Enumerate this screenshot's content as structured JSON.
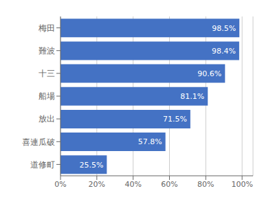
{
  "chart_data": {
    "type": "bar",
    "orientation": "horizontal",
    "categories": [
      "梅田",
      "難波",
      "十三",
      "船場",
      "放出",
      "喜連瓜破",
      "道修町"
    ],
    "values": [
      98.5,
      98.4,
      90.6,
      81.1,
      71.5,
      57.8,
      25.5
    ],
    "value_labels": [
      "98.5%",
      "98.4%",
      "90.6%",
      "81.1%",
      "71.5%",
      "57.8%",
      "25.5%"
    ],
    "color": "#4472C4",
    "xlim": [
      0,
      106
    ],
    "xticks": [
      {
        "value": 0,
        "label": "0%"
      },
      {
        "value": 20,
        "label": "20%"
      },
      {
        "value": 40,
        "label": "40%"
      },
      {
        "value": 60,
        "label": "60%"
      },
      {
        "value": 80,
        "label": "80%"
      },
      {
        "value": 100,
        "label": "100%"
      }
    ],
    "grid": true,
    "data_labels": true
  }
}
